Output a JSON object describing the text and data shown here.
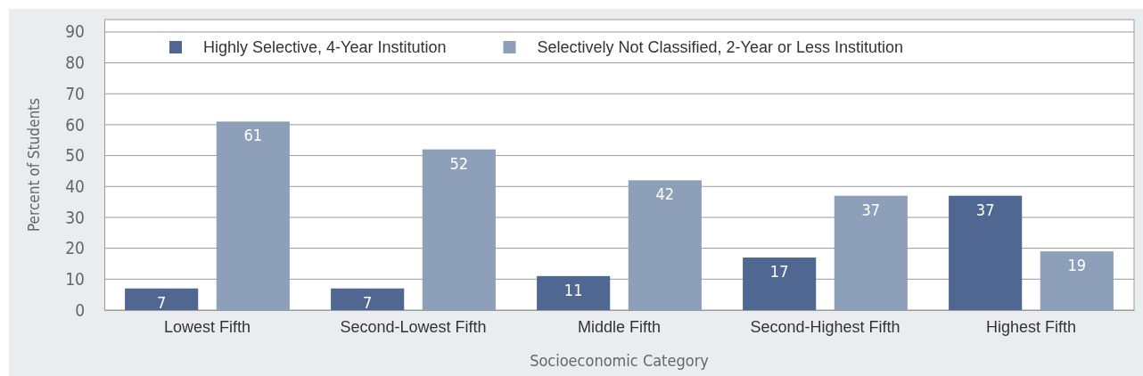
{
  "chart_data": {
    "type": "bar",
    "xlabel": "Socioeconomic Category",
    "ylabel": "Percent of Students",
    "categories": [
      "Lowest Fifth",
      "Second-Lowest Fifth",
      "Middle Fifth",
      "Second-Highest Fifth",
      "Highest Fifth"
    ],
    "series": [
      {
        "name": "Highly Selective, 4-Year Institution",
        "color": "#506891",
        "values": [
          7,
          7,
          11,
          17,
          37
        ]
      },
      {
        "name": "Selectively Not Classified, 2-Year or Less Institution",
        "color": "#8e9fba",
        "values": [
          61,
          52,
          42,
          37,
          19
        ]
      }
    ],
    "ylim": [
      0,
      94
    ],
    "yticks": [
      0,
      10,
      20,
      30,
      40,
      50,
      60,
      70,
      80,
      90
    ],
    "grid": "y",
    "legend": "top left",
    "data_labels": true
  }
}
